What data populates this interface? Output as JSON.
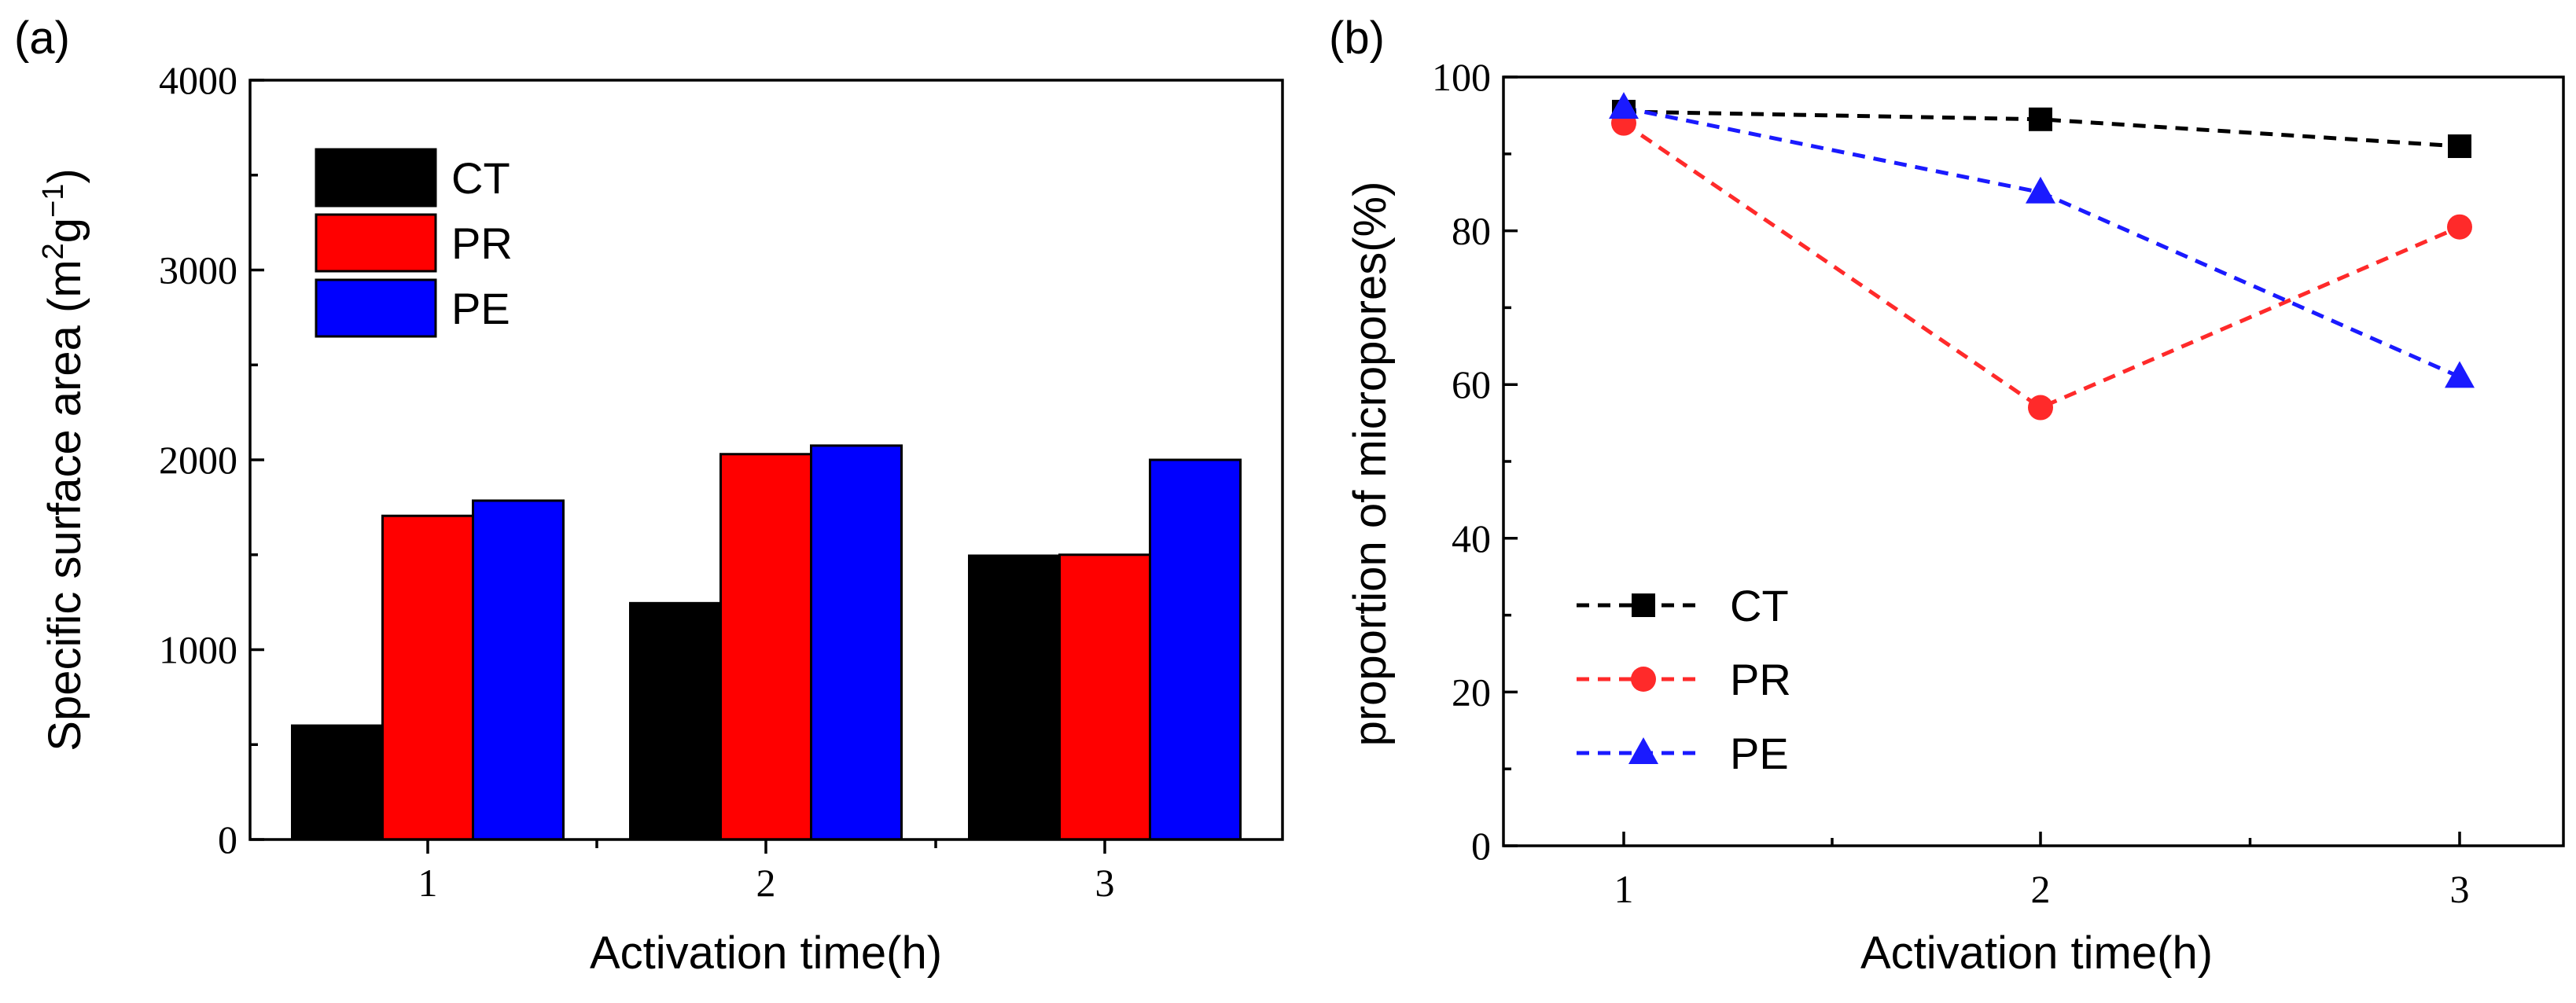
{
  "chart_data": [
    {
      "type": "bar",
      "panel_label": "(a)",
      "categories": [
        "1",
        "2",
        "3"
      ],
      "series": [
        {
          "name": "CT",
          "color": "#000000",
          "values": [
            600,
            1245,
            1495
          ]
        },
        {
          "name": "PR",
          "color": "#ff0000",
          "values": [
            1705,
            2030,
            1500
          ]
        },
        {
          "name": "PE",
          "color": "#0000ff",
          "values": [
            1785,
            2075,
            2000
          ]
        }
      ],
      "xlabel": "Activation time(h)",
      "ylabel": {
        "prefix": "Specific surface area (m",
        "sup1": "2",
        "mid": "g",
        "sup2": "−1",
        "suffix": ")"
      },
      "ylim": [
        0,
        4000
      ],
      "yticks": [
        "0",
        "1000",
        "2000",
        "3000",
        "4000"
      ],
      "legend": "top-left"
    },
    {
      "type": "line",
      "panel_label": "(b)",
      "x": [
        "1",
        "2",
        "3"
      ],
      "series": [
        {
          "name": "CT",
          "color": "#000000",
          "marker": "square",
          "values": [
            95.5,
            94.5,
            91
          ]
        },
        {
          "name": "PR",
          "color": "#ff2a2a",
          "marker": "circle",
          "values": [
            94,
            57,
            80.5
          ]
        },
        {
          "name": "PE",
          "color": "#1a1aff",
          "marker": "triangle",
          "values": [
            96,
            85,
            61
          ]
        }
      ],
      "xlabel": "Activation time(h)",
      "ylabel": "proportion of micropores(%)",
      "ylim": [
        0,
        100
      ],
      "yticks": [
        "0",
        "20",
        "40",
        "60",
        "80",
        "100"
      ],
      "legend": "bottom-left"
    }
  ]
}
